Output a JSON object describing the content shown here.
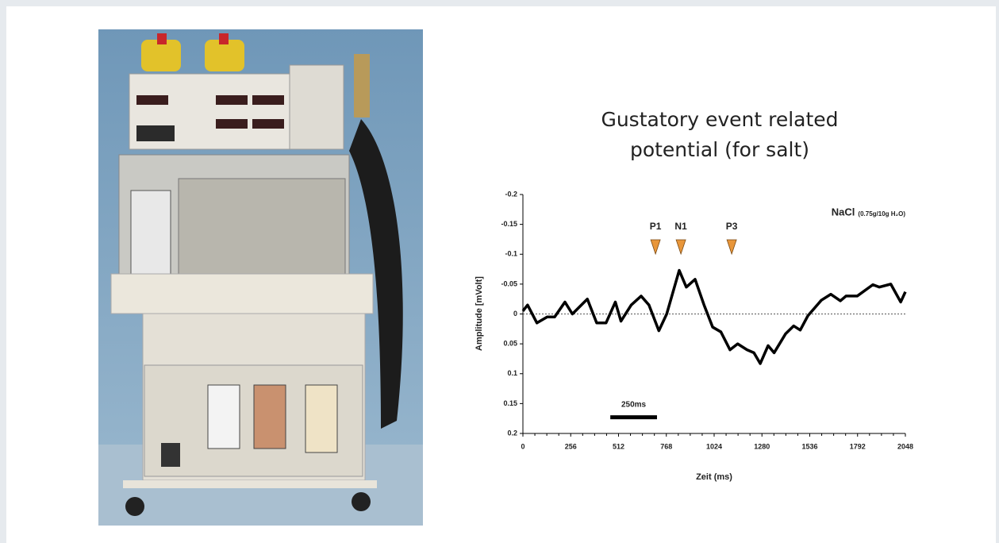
{
  "chart_data": {
    "type": "line",
    "title": "Gustatory event related potential (for salt)",
    "annotation_title": "NaCl",
    "annotation_subtitle": "(0.75g/10g H₂O)",
    "x_label": "Zeit (ms)",
    "y_label": "Amplitude [mVolt]",
    "xlim": [
      0,
      2048
    ],
    "xticks": [
      0,
      256,
      512,
      768,
      1024,
      1280,
      1536,
      1792,
      2048
    ],
    "ylim": [
      0.2,
      -0.2
    ],
    "yticks": [
      -0.2,
      -0.15,
      -0.1,
      -0.05,
      0,
      0.05,
      0.1,
      0.15,
      0.2
    ],
    "zero_line": true,
    "x": [
      0,
      25,
      75,
      130,
      170,
      225,
      265,
      345,
      395,
      445,
      495,
      525,
      580,
      633,
      675,
      728,
      770,
      837,
      875,
      922,
      970,
      1016,
      1060,
      1109,
      1150,
      1200,
      1237,
      1271,
      1313,
      1345,
      1407,
      1450,
      1485,
      1526,
      1598,
      1649,
      1700,
      1730,
      1790,
      1874,
      1908,
      1970,
      2023,
      2048
    ],
    "series": [
      {
        "color": "#000000",
        "values": [
          -0.005,
          -0.015,
          0.015,
          0.005,
          0.005,
          -0.02,
          0,
          -0.025,
          0.015,
          0.015,
          -0.02,
          0.012,
          -0.015,
          -0.03,
          -0.015,
          0.028,
          0,
          -0.073,
          -0.045,
          -0.058,
          -0.015,
          0.022,
          0.03,
          0.06,
          0.05,
          0.06,
          0.065,
          0.083,
          0.053,
          0.065,
          0.033,
          0.02,
          0.027,
          0.003,
          -0.023,
          -0.033,
          -0.022,
          -0.03,
          -0.03,
          -0.049,
          -0.045,
          -0.05,
          -0.02,
          -0.037
        ]
      }
    ],
    "peak_markers": [
      {
        "label": "P1",
        "x": 710
      },
      {
        "label": "N1",
        "x": 846
      },
      {
        "label": "P3",
        "x": 1118
      }
    ],
    "marker_color": "#e8963a",
    "scale_bar": {
      "label": "250ms",
      "x": [
        468,
        718
      ],
      "y": 0.173
    }
  }
}
